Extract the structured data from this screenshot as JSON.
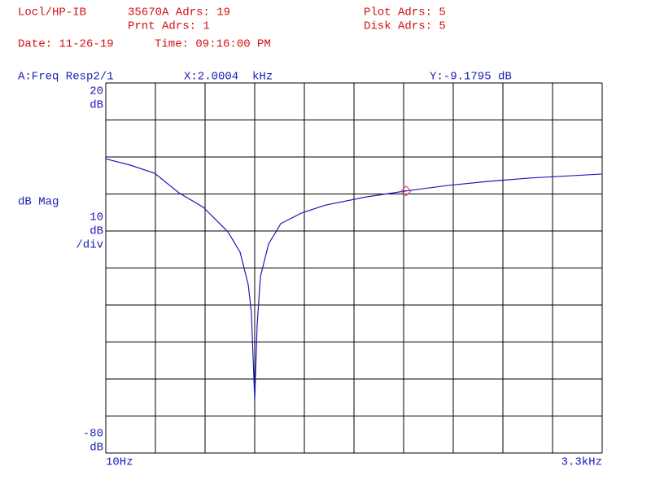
{
  "chart_data": {
    "type": "line",
    "instrument": "Locl/HP-IB",
    "address": "35670A Adrs: 19",
    "printer": "Prnt Adrs: 1",
    "plotter": "Plot Adrs: 5",
    "disk": "Disk Adrs: 5",
    "date": "Date: 11-26-19",
    "time": "Time: 09:16:00 PM",
    "title": "A:Freq Resp2/1",
    "ylabel": "dB Mag",
    "y_unit": "dB",
    "per_div": 10,
    "per_div_label": "/div",
    "grid": true,
    "xlim": [
      10,
      3300
    ],
    "ylim": [
      -80,
      20
    ],
    "xticks": [
      {
        "value": 10,
        "label": "10Hz"
      },
      {
        "value": 3300,
        "label": "3.3kHz"
      }
    ],
    "yticks": [
      20,
      -80
    ],
    "x": [
      10,
      172,
      334,
      495,
      657,
      819,
      900,
      954,
      975,
      997,
      1013,
      1035,
      1089,
      1170,
      1304,
      1466,
      1736,
      2000.4,
      2275,
      2545,
      2815,
      3084,
      3300
    ],
    "series": [
      {
        "name": "A:Freq Resp2/1",
        "color": "#1a1ab8",
        "values": [
          -0.5,
          -2.2,
          -4.4,
          -9.7,
          -13.6,
          -20.2,
          -25.7,
          -34.5,
          -42,
          -65.7,
          -45.5,
          -32.3,
          -23.5,
          -18,
          -15.2,
          -13,
          -10.8,
          -9.1795,
          -7.7,
          -6.6,
          -5.7,
          -5.1,
          -4.6
        ]
      }
    ],
    "marker": {
      "x": 2000.4,
      "y": -9.1795,
      "color": "#e0508a",
      "x_label": "X:2.0004  kHz",
      "y_label": "Y:-9.1795 dB"
    }
  }
}
